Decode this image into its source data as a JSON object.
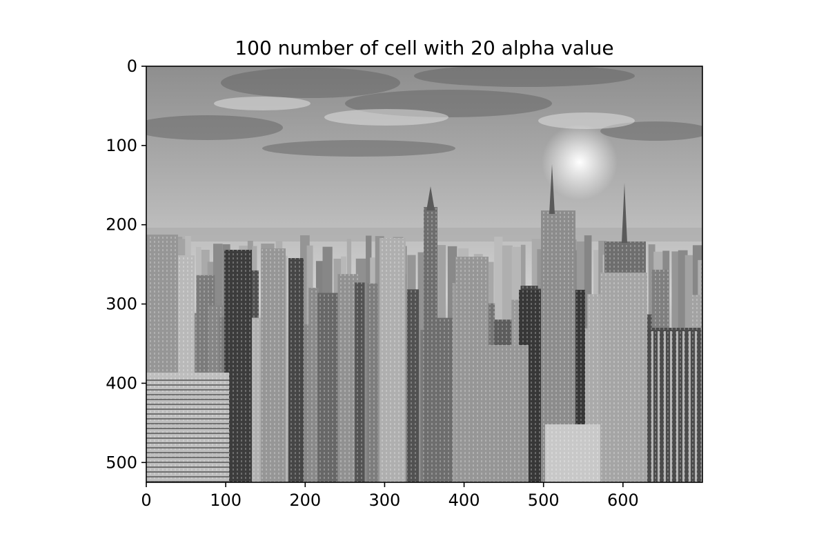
{
  "chart_data": {
    "type": "image",
    "title": "100 number of cell with 20 alpha value",
    "xlabel": "",
    "ylabel": "",
    "xlim": [
      0,
      700
    ],
    "ylim": [
      525,
      0
    ],
    "x_ticks": [
      0,
      100,
      200,
      300,
      400,
      500,
      600
    ],
    "y_ticks": [
      0,
      100,
      200,
      300,
      400,
      500
    ],
    "colormap": "gray",
    "grid": false,
    "image_content": "grayscale city skyline",
    "colors": {
      "text": "#000000",
      "frame": "#000000",
      "background": "#ffffff"
    }
  }
}
